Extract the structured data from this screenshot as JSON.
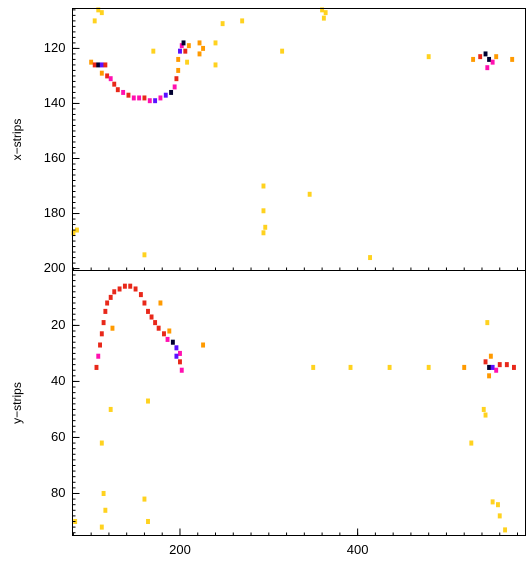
{
  "chart_data": [
    {
      "type": "heatmap",
      "ylabel": "x−strips",
      "xlim": [
        79,
        589
      ],
      "ylim": [
        105.5,
        200.7
      ],
      "yticks": [
        120,
        140,
        160,
        180,
        200
      ],
      "colors": [
        "#ffd21f",
        "#ff9a00",
        "#e8281a",
        "#ff10b0",
        "#5a10ff",
        "#000030"
      ],
      "cells": [
        [
          100,
          125,
          2
        ],
        [
          104,
          126,
          3
        ],
        [
          108,
          126,
          6
        ],
        [
          112,
          126,
          5
        ],
        [
          116,
          126,
          3
        ],
        [
          112,
          129,
          2
        ],
        [
          118,
          130,
          3
        ],
        [
          122,
          131,
          4
        ],
        [
          126,
          133,
          3
        ],
        [
          130,
          135,
          3
        ],
        [
          136,
          136,
          4
        ],
        [
          142,
          137,
          3
        ],
        [
          148,
          138,
          4
        ],
        [
          154,
          138,
          4
        ],
        [
          160,
          138,
          3
        ],
        [
          166,
          139,
          4
        ],
        [
          172,
          139,
          5
        ],
        [
          178,
          138,
          4
        ],
        [
          184,
          137,
          5
        ],
        [
          190,
          136,
          6
        ],
        [
          194,
          134,
          4
        ],
        [
          196,
          131,
          3
        ],
        [
          198,
          128,
          2
        ],
        [
          198,
          124,
          2
        ],
        [
          200,
          121,
          5
        ],
        [
          202,
          119,
          4
        ],
        [
          204,
          118,
          6
        ],
        [
          206,
          121,
          3
        ],
        [
          210,
          119,
          2
        ],
        [
          222,
          118,
          2
        ],
        [
          226,
          120,
          2
        ],
        [
          222,
          122,
          2
        ],
        [
          108,
          106,
          1
        ],
        [
          112,
          107,
          1
        ],
        [
          104,
          110,
          1
        ],
        [
          240,
          118,
          1
        ],
        [
          248,
          111,
          1
        ],
        [
          270,
          110,
          1
        ],
        [
          315,
          121,
          1
        ],
        [
          360,
          106,
          1
        ],
        [
          362,
          109,
          1
        ],
        [
          364,
          107,
          1
        ],
        [
          480,
          123,
          1
        ],
        [
          530,
          124,
          2
        ],
        [
          538,
          123,
          3
        ],
        [
          544,
          122,
          6
        ],
        [
          548,
          124,
          6
        ],
        [
          552,
          125,
          4
        ],
        [
          546,
          127,
          4
        ],
        [
          556,
          123,
          2
        ],
        [
          574,
          124,
          2
        ],
        [
          294,
          170,
          1
        ],
        [
          294,
          179,
          1
        ],
        [
          294,
          187,
          1
        ],
        [
          296,
          185,
          1
        ],
        [
          346,
          173,
          1
        ],
        [
          160,
          195,
          1
        ],
        [
          414,
          196,
          1
        ],
        [
          80,
          187,
          1
        ],
        [
          84,
          186,
          1
        ],
        [
          240,
          126,
          1
        ],
        [
          208,
          125,
          1
        ],
        [
          170,
          121,
          1
        ]
      ]
    },
    {
      "type": "heatmap",
      "ylabel": "y−strips",
      "xlim": [
        79,
        589
      ],
      "ylim": [
        0.4,
        95
      ],
      "xticks": [
        200,
        400
      ],
      "yticks": [
        20,
        40,
        60,
        80
      ],
      "colors": [
        "#ffd21f",
        "#ff9a00",
        "#e8281a",
        "#ff10b0",
        "#5a10ff",
        "#000030"
      ],
      "cells": [
        [
          106,
          35,
          3
        ],
        [
          108,
          31,
          4
        ],
        [
          110,
          27,
          3
        ],
        [
          112,
          23,
          3
        ],
        [
          114,
          19,
          3
        ],
        [
          116,
          15,
          3
        ],
        [
          118,
          12,
          3
        ],
        [
          122,
          10,
          3
        ],
        [
          126,
          8,
          3
        ],
        [
          132,
          7,
          3
        ],
        [
          138,
          6,
          3
        ],
        [
          144,
          6,
          3
        ],
        [
          150,
          7,
          3
        ],
        [
          156,
          9,
          3
        ],
        [
          160,
          12,
          3
        ],
        [
          164,
          15,
          3
        ],
        [
          168,
          17,
          3
        ],
        [
          172,
          19,
          3
        ],
        [
          176,
          21,
          3
        ],
        [
          182,
          23,
          3
        ],
        [
          186,
          25,
          4
        ],
        [
          192,
          26,
          6
        ],
        [
          196,
          28,
          5
        ],
        [
          200,
          30,
          4
        ],
        [
          200,
          33,
          3
        ],
        [
          202,
          36,
          4
        ],
        [
          196,
          31,
          5
        ],
        [
          188,
          22,
          2
        ],
        [
          178,
          12,
          2
        ],
        [
          226,
          27,
          2
        ],
        [
          350,
          35,
          1
        ],
        [
          392,
          35,
          1
        ],
        [
          436,
          35,
          1
        ],
        [
          480,
          35,
          1
        ],
        [
          520,
          35,
          2
        ],
        [
          544,
          33,
          3
        ],
        [
          548,
          35,
          6
        ],
        [
          552,
          35,
          5
        ],
        [
          556,
          36,
          4
        ],
        [
          560,
          34,
          3
        ],
        [
          568,
          34,
          3
        ],
        [
          576,
          35,
          3
        ],
        [
          548,
          38,
          2
        ],
        [
          550,
          31,
          2
        ],
        [
          546,
          19,
          1
        ],
        [
          542,
          50,
          1
        ],
        [
          544,
          52,
          1
        ],
        [
          528,
          62,
          1
        ],
        [
          552,
          83,
          1
        ],
        [
          558,
          84,
          1
        ],
        [
          560,
          88,
          1
        ],
        [
          566,
          93,
          1
        ],
        [
          112,
          92,
          1
        ],
        [
          114,
          80,
          1
        ],
        [
          116,
          86,
          1
        ],
        [
          112,
          62,
          1
        ],
        [
          122,
          50,
          1
        ],
        [
          160,
          82,
          1
        ],
        [
          164,
          90,
          1
        ],
        [
          164,
          47,
          1
        ],
        [
          82,
          90,
          1
        ],
        [
          124,
          21,
          2
        ]
      ]
    }
  ]
}
